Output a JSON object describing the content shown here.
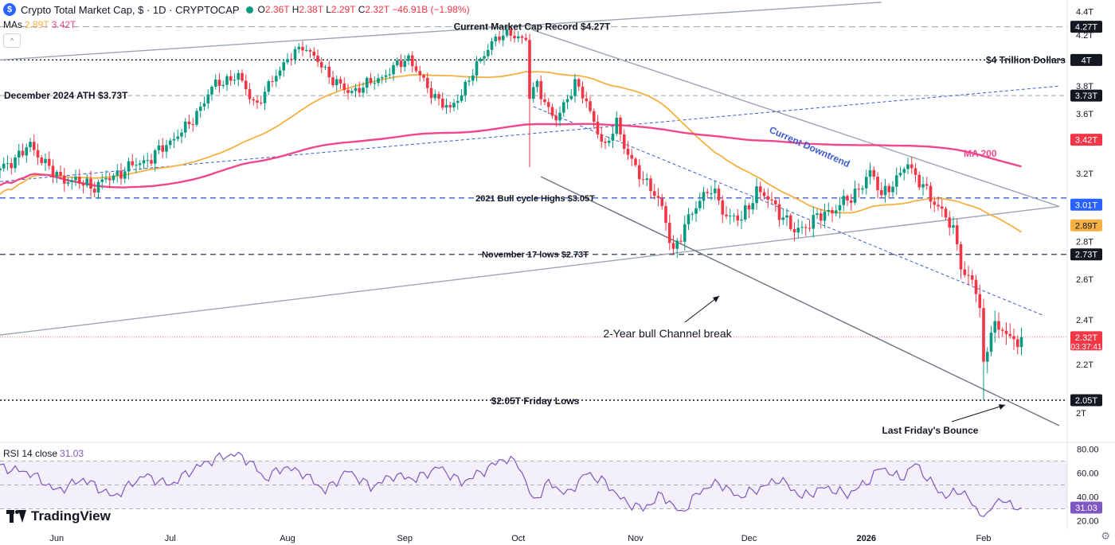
{
  "header": {
    "title": "Crypto Total Market Cap, $ · 1D · CRYPTOCAP",
    "logo_letter": "$",
    "open_label": "O",
    "open": "2.36T",
    "high_label": "H",
    "high": "2.38T",
    "low_label": "L",
    "low": "2.29T",
    "close_label": "C",
    "close": "2.32T",
    "change": "−46.91B (−1.98%)",
    "mas_label": "MAs",
    "ma50_value": "2.89T",
    "ma200_value": "3.42T",
    "collapse_glyph": "^"
  },
  "brand": {
    "name": "TradingView"
  },
  "colors": {
    "up": "#089981",
    "down": "#f23645",
    "ma50": "#f5b041",
    "ma200": "#f0478a",
    "rsi": "#7e57c2",
    "trend": "#9ba5b4",
    "blue_dash": "#3d5ccc",
    "record_line": "#9aa0aa"
  },
  "chart_data": [
    {
      "type": "candlestick",
      "title": "Crypto Total Market Cap, $ · 1D · CRYPTOCAP",
      "y_unit": "T",
      "ylim": [
        1.89,
        4.5
      ],
      "y_ticks": [
        2.0,
        2.2,
        2.4,
        2.6,
        2.8,
        3.0,
        3.2,
        3.6,
        3.8,
        4.2,
        4.4
      ],
      "y_tick_labels": [
        "2T",
        "2.2T",
        "2.4T",
        "2.6T",
        "2.8T",
        "3T",
        "3.2T",
        "3.6T",
        "3.8T",
        "4.2T",
        "4.4T"
      ],
      "x_labels": [
        "Jun",
        "Jul",
        "Aug",
        "Sep",
        "Oct",
        "Nov",
        "Dec",
        "2026",
        "Feb"
      ],
      "x_label_days": [
        15,
        45,
        76,
        107,
        137,
        168,
        198,
        229,
        260
      ],
      "day_range": [
        0,
        280
      ],
      "grid": false,
      "anchors": {
        "days": [
          0,
          8,
          15,
          25,
          35,
          40,
          50,
          57,
          63,
          68,
          73,
          80,
          88,
          92,
          100,
          108,
          113,
          119,
          124,
          130,
          135,
          139,
          140,
          142,
          145,
          147,
          150,
          152,
          155,
          160,
          163,
          165,
          168,
          172,
          175,
          178,
          182,
          185,
          188,
          192,
          196,
          200,
          205,
          210,
          215,
          220,
          225,
          230,
          233,
          237,
          240,
          242,
          246,
          249,
          252,
          255,
          257,
          259,
          260,
          262,
          264,
          265,
          266,
          268,
          270
        ],
        "close": [
          3.22,
          3.38,
          3.18,
          3.12,
          3.25,
          3.3,
          3.52,
          3.82,
          3.87,
          3.65,
          3.9,
          4.12,
          3.85,
          3.75,
          3.85,
          4.02,
          3.78,
          3.62,
          3.85,
          4.15,
          4.22,
          4.15,
          3.72,
          3.82,
          3.62,
          3.55,
          3.72,
          3.82,
          3.68,
          3.35,
          3.55,
          3.38,
          3.22,
          3.12,
          2.98,
          2.75,
          2.92,
          3.05,
          3.1,
          2.95,
          2.92,
          3.1,
          3.0,
          2.85,
          2.92,
          2.98,
          3.05,
          3.2,
          3.08,
          3.15,
          3.28,
          3.18,
          3.05,
          2.98,
          2.85,
          2.62,
          2.6,
          2.45,
          2.18,
          2.38,
          2.35,
          2.36,
          2.32,
          2.31,
          2.32
        ]
      },
      "annotations": [
        {
          "label": "Current Market Cap Record $4.27T",
          "value": 4.27
        },
        {
          "label": "$4 Trillion Dollars",
          "value": 4.0
        },
        {
          "label": "December 2024 ATH $3.73T",
          "value": 3.73
        },
        {
          "label": "2021 Bull cycle Highs $3.05T",
          "value": 3.05
        },
        {
          "label": "November 17 lows $2.73T",
          "value": 2.73
        },
        {
          "label": "$2.05T Friday Lows",
          "value": 2.05
        },
        {
          "label": "Current Downtrend"
        },
        {
          "label": "MA 200"
        },
        {
          "label": "2-Year bull Channel break"
        },
        {
          "label": "Last Friday's Bounce"
        }
      ],
      "price_badges": [
        {
          "label": "4.27T",
          "value": 4.27,
          "color": "#131722",
          "text_color": "#ffffff"
        },
        {
          "label": "4T",
          "value": 4.0,
          "color": "#131722",
          "text_color": "#ffffff"
        },
        {
          "label": "3.73T",
          "value": 3.73,
          "color": "#131722",
          "text_color": "#ffffff"
        },
        {
          "label": "3.42T",
          "value": 3.42,
          "color": "#f23645",
          "text_color": "#ffffff"
        },
        {
          "label": "3.01T",
          "value": 3.01,
          "color": "#2962ff",
          "text_color": "#ffffff"
        },
        {
          "label": "2.89T",
          "value": 2.89,
          "color": "#f5b041",
          "text_color": "#131722"
        },
        {
          "label": "2.73T",
          "value": 2.73,
          "color": "#131722",
          "text_color": "#ffffff"
        },
        {
          "label": "2.32T",
          "value": 2.32,
          "color": "#f23645",
          "text_color": "#ffffff",
          "subtext": "03:37:41"
        },
        {
          "label": "2.05T",
          "value": 2.05,
          "color": "#131722",
          "text_color": "#ffffff"
        }
      ]
    },
    {
      "type": "line",
      "title": "RSI 14 close",
      "last_value": "31.03",
      "ylim": [
        15,
        85
      ],
      "y_ticks": [
        20,
        40,
        60,
        80
      ],
      "y_tick_labels": [
        "20.00",
        "40.00",
        "60.00",
        "80.00"
      ],
      "band": [
        30,
        70
      ],
      "anchors": {
        "days": [
          0,
          8,
          15,
          22,
          30,
          38,
          45,
          52,
          57,
          62,
          66,
          70,
          75,
          80,
          86,
          92,
          98,
          104,
          110,
          116,
          122,
          128,
          133,
          137,
          141,
          145,
          150,
          155,
          160,
          165,
          170,
          175,
          180,
          185,
          190,
          195,
          200,
          206,
          212,
          218,
          224,
          229,
          233,
          238,
          242,
          246,
          250,
          254,
          258,
          261,
          263,
          266,
          270
        ],
        "values": [
          65,
          60,
          45,
          55,
          40,
          58,
          50,
          65,
          72,
          76,
          70,
          55,
          65,
          60,
          45,
          62,
          48,
          58,
          55,
          65,
          52,
          62,
          72,
          68,
          36,
          52,
          42,
          60,
          52,
          36,
          30,
          42,
          26,
          45,
          52,
          40,
          46,
          55,
          40,
          48,
          42,
          52,
          65,
          55,
          68,
          52,
          40,
          46,
          30,
          22,
          38,
          35,
          31
        ]
      }
    }
  ]
}
